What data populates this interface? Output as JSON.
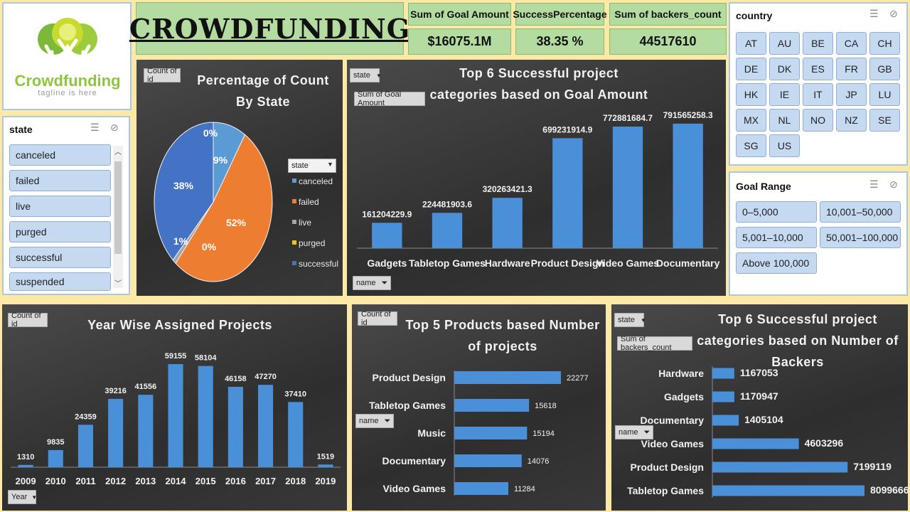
{
  "header": {
    "title": "CROWDFUNDING"
  },
  "logo": {
    "text": "Crowdfunding",
    "tagline": "tagline is here"
  },
  "kpis": [
    {
      "label": "Sum of Goal Amount",
      "value": "$16075.1M"
    },
    {
      "label": "SuccessPercentage",
      "value": "38.35 %"
    },
    {
      "label": "Sum of backers_count",
      "value": "44517610"
    }
  ],
  "state_slicer": {
    "title": "state",
    "items": [
      "canceled",
      "failed",
      "live",
      "purged",
      "successful",
      "suspended"
    ]
  },
  "country_slicer": {
    "title": "country",
    "items": [
      "AT",
      "AU",
      "BE",
      "CA",
      "CH",
      "DE",
      "DK",
      "ES",
      "FR",
      "GB",
      "HK",
      "IE",
      "IT",
      "JP",
      "LU",
      "MX",
      "NL",
      "NO",
      "NZ",
      "SE",
      "SG",
      "US"
    ]
  },
  "goal_slicer": {
    "title": "Goal Range",
    "items": [
      "0–5,000",
      "10,001–50,000",
      "5,001–10,000",
      "50,001–100,000",
      "Above 100,000"
    ]
  },
  "field_buttons": {
    "count_of_id": "Count of id",
    "state": "state",
    "sum_goal": "Sum of Goal Amount",
    "name": "name",
    "year": "Year",
    "sum_backers": "Sum of backers_count"
  },
  "colors": {
    "blue": "#5b9bd5",
    "orange": "#ed7d31",
    "gray": "#a5a5a5",
    "gold": "#ffc000",
    "dark_blue": "#4472c4",
    "bar": "#4a90d9"
  },
  "chart_data": [
    {
      "type": "pie",
      "title": "Percentage of Count By State",
      "legend_title": "state",
      "categories": [
        "canceled",
        "failed",
        "live",
        "purged",
        "successful"
      ],
      "values": [
        9,
        52,
        1,
        0,
        38
      ],
      "labels": [
        "9%",
        "52%",
        "1%",
        "0%",
        "38%"
      ],
      "extra_label": "0%",
      "legend": "right"
    },
    {
      "type": "bar",
      "title": "Top 6 Successful project categories based on Goal Amount",
      "categories": [
        "Gadgets",
        "Tabletop Games",
        "Hardware",
        "Product Design",
        "Video Games",
        "Documentary"
      ],
      "values": [
        161204229.9,
        224481903.6,
        320263421.3,
        699231914.9,
        772881684.7,
        791565258.3
      ],
      "value_labels": [
        "161204229.9",
        "224481903.6",
        "320263421.3",
        "699231914.9",
        "772881684.7",
        "791565258.3"
      ]
    },
    {
      "type": "bar",
      "title": "Year Wise Assigned Projects",
      "categories": [
        "2009",
        "2010",
        "2011",
        "2012",
        "2013",
        "2014",
        "2015",
        "2016",
        "2017",
        "2018",
        "2019"
      ],
      "values": [
        1310,
        9835,
        24359,
        39216,
        41556,
        59155,
        58104,
        46158,
        47270,
        37410,
        1519
      ]
    },
    {
      "type": "bar",
      "orientation": "horizontal",
      "title": "Top 5 Products based Number of projects",
      "categories": [
        "Product Design",
        "Tabletop Games",
        "Music",
        "Documentary",
        "Video Games"
      ],
      "values": [
        22277,
        15618,
        15194,
        14076,
        11284
      ]
    },
    {
      "type": "bar",
      "orientation": "horizontal",
      "title": "Top 6 Successful project categories based on Number of Backers",
      "categories": [
        "Hardware",
        "Gadgets",
        "Documentary",
        "Video Games",
        "Product Design",
        "Tabletop Games"
      ],
      "values": [
        1167053,
        1170947,
        1405104,
        4603296,
        7199119,
        8099666
      ]
    }
  ]
}
